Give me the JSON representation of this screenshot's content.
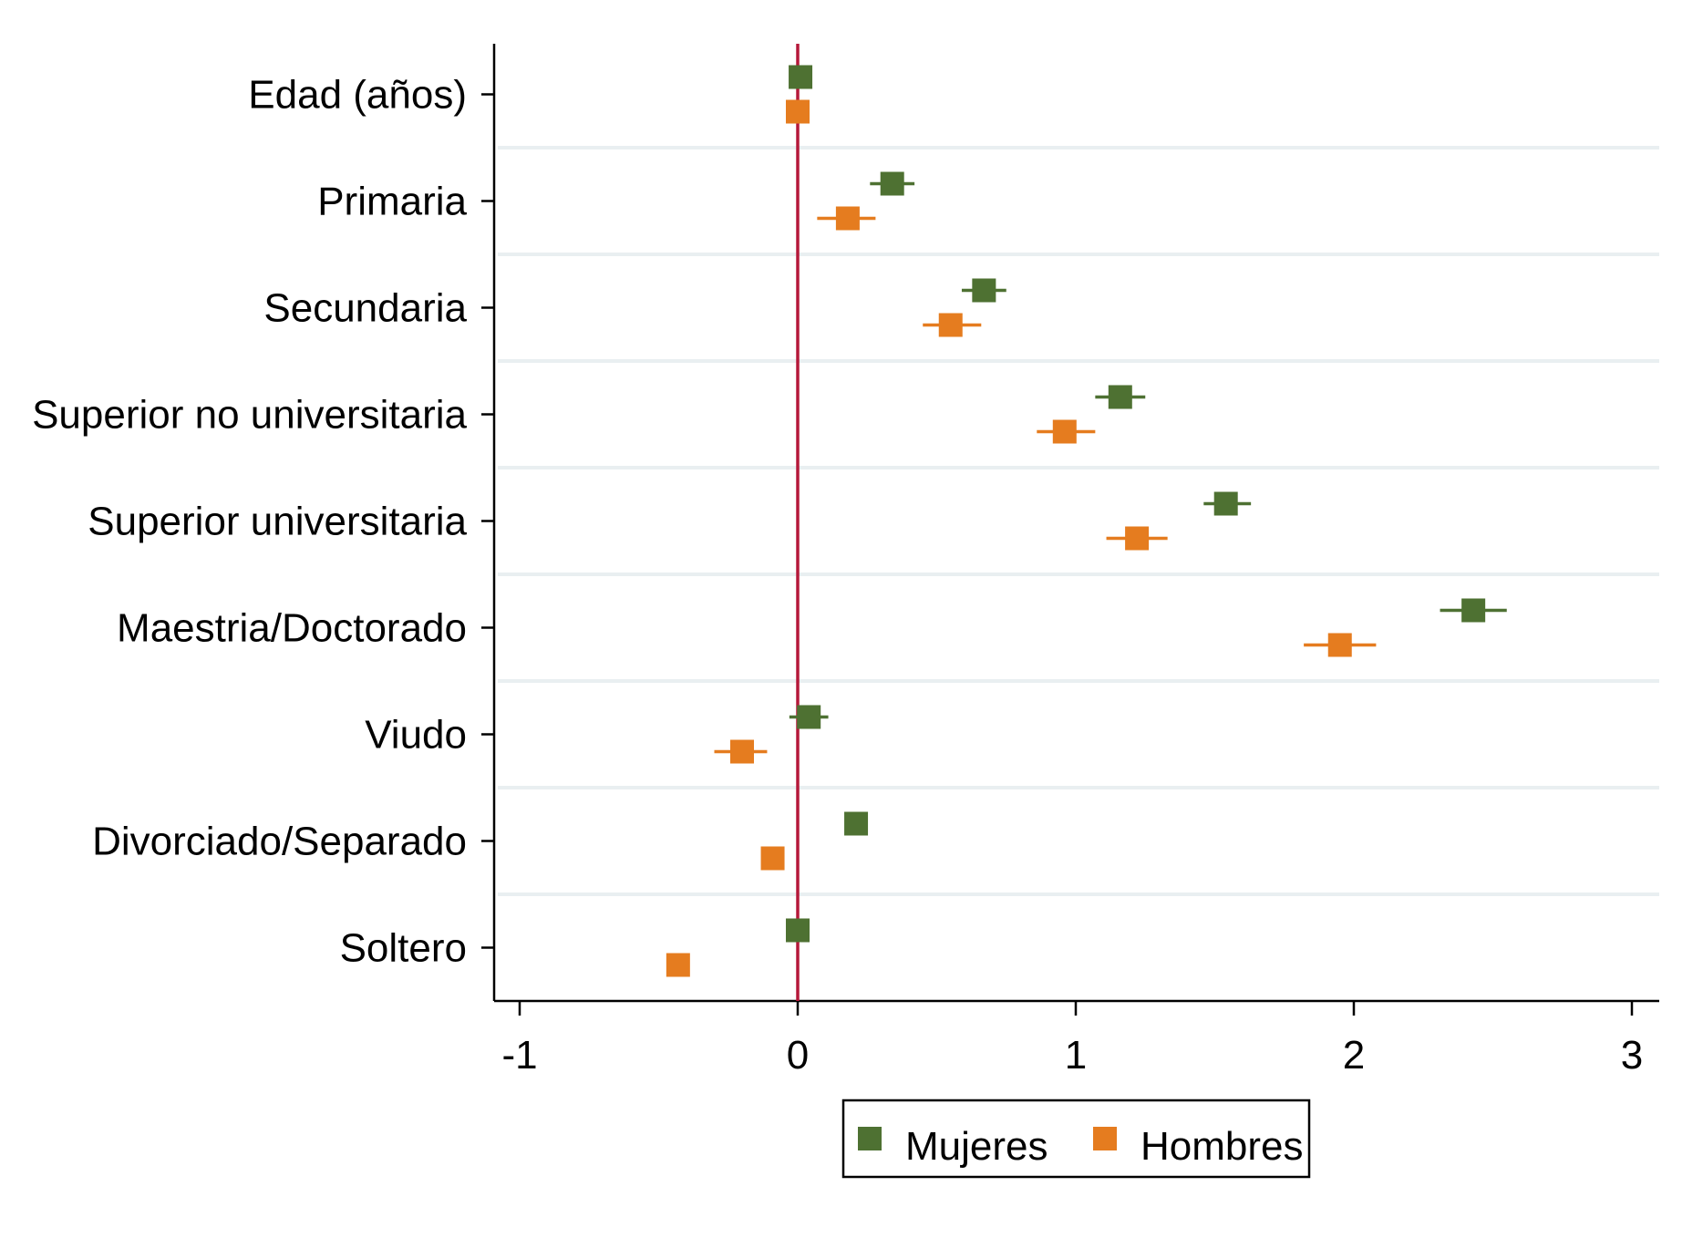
{
  "chart_data": {
    "type": "scatter",
    "title": "",
    "xlabel": "",
    "ylabel": "",
    "xlim": [
      -1.1,
      3.1
    ],
    "x_ticks": [
      -1,
      0,
      1,
      2,
      3
    ],
    "x_tick_labels": [
      "-1",
      "0",
      "1",
      "2",
      "3"
    ],
    "reference_line_x": 0,
    "reference_line_color": "#b5183a",
    "grid": "horizontal",
    "legend_position": "bottom",
    "categories": [
      "Edad (años)",
      "Primaria",
      "Secundaria",
      "Superior no universitaria",
      "Superior universitaria",
      "Maestria/Doctorado",
      "Viudo",
      "Divorciado/Separado",
      "Soltero"
    ],
    "series": [
      {
        "name": "Mujeres",
        "color": "#4e7132",
        "values": [
          0.01,
          0.34,
          0.67,
          1.16,
          1.54,
          2.43,
          0.04,
          0.21,
          0.0
        ],
        "ci_low": [
          0.01,
          0.26,
          0.59,
          1.07,
          1.46,
          2.31,
          -0.03,
          0.21,
          0.0
        ],
        "ci_high": [
          0.01,
          0.42,
          0.75,
          1.25,
          1.63,
          2.55,
          0.11,
          0.21,
          0.0
        ]
      },
      {
        "name": "Hombres",
        "color": "#e57c1f",
        "values": [
          0.0,
          0.18,
          0.55,
          0.96,
          1.22,
          1.95,
          -0.2,
          -0.09,
          -0.43
        ],
        "ci_low": [
          0.0,
          0.07,
          0.45,
          0.86,
          1.11,
          1.82,
          -0.3,
          -0.09,
          -0.43
        ],
        "ci_high": [
          0.0,
          0.28,
          0.66,
          1.07,
          1.33,
          2.08,
          -0.11,
          -0.09,
          -0.43
        ]
      }
    ]
  },
  "legend": {
    "items": [
      {
        "label": "Mujeres",
        "color": "#4e7132"
      },
      {
        "label": "Hombres",
        "color": "#e57c1f"
      }
    ]
  }
}
